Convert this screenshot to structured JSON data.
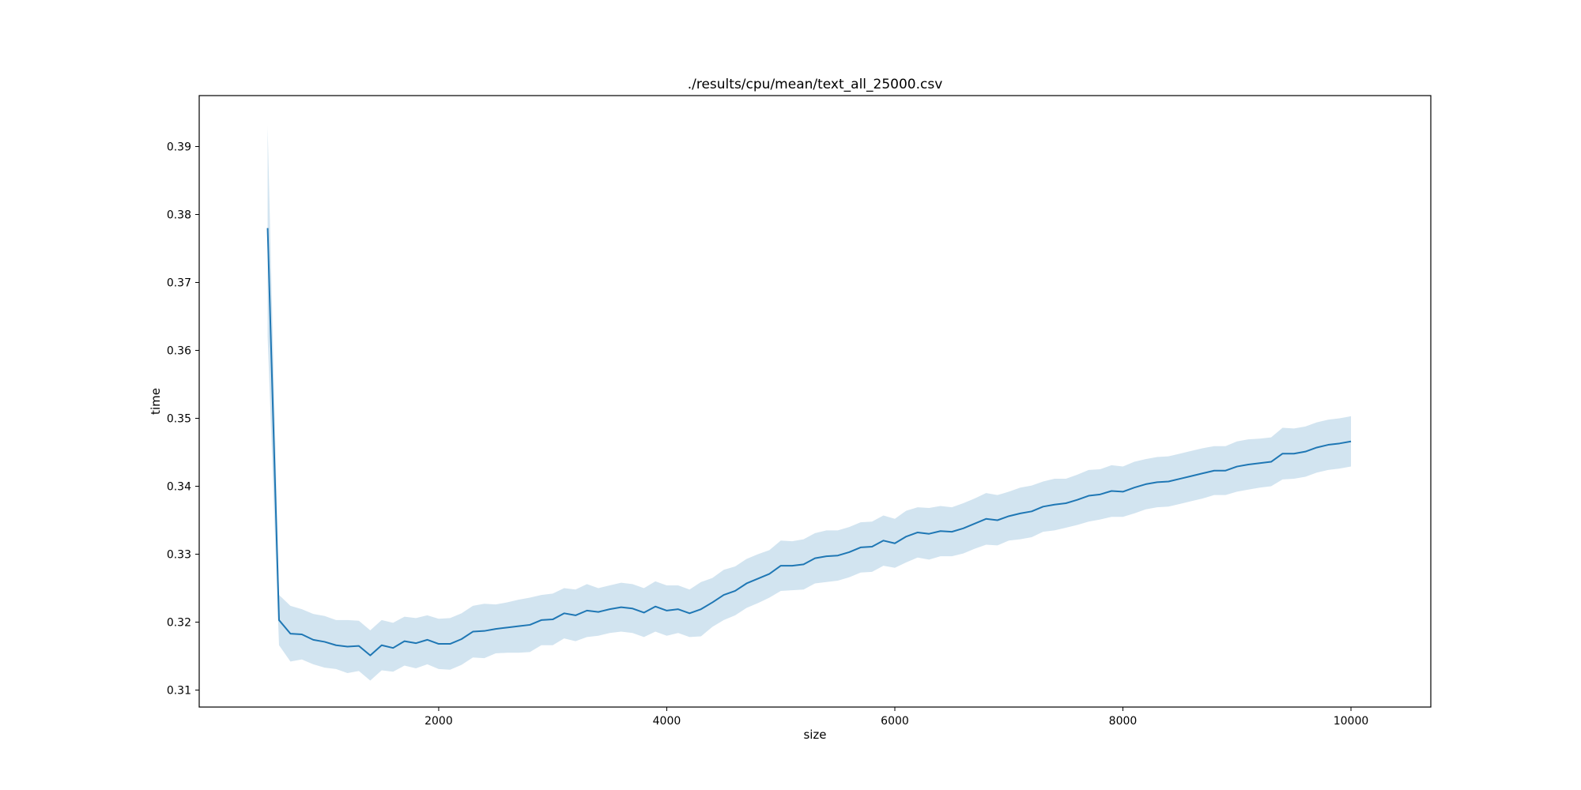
{
  "chart_data": {
    "type": "line",
    "title": "./results/cpu/mean/text_all_25000.csv",
    "xlabel": "size",
    "ylabel": "time",
    "xlim": [
      -100,
      10700
    ],
    "ylim": [
      0.3075,
      0.3975
    ],
    "xticks": [
      2000,
      4000,
      6000,
      8000,
      10000
    ],
    "xtick_labels": [
      "2000",
      "4000",
      "6000",
      "8000",
      "10000"
    ],
    "yticks": [
      0.31,
      0.32,
      0.33,
      0.34,
      0.35,
      0.36,
      0.37,
      0.38,
      0.39
    ],
    "ytick_labels": [
      "0.31",
      "0.32",
      "0.33",
      "0.34",
      "0.35",
      "0.36",
      "0.37",
      "0.38",
      "0.39"
    ],
    "grid": false,
    "series": [
      {
        "name": "time",
        "color": "#1f77b4",
        "band_color": "#1f77b4",
        "band_opacity": 0.2,
        "x": [
          500,
          600,
          700,
          800,
          900,
          1000,
          1100,
          1200,
          1300,
          1400,
          1500,
          1600,
          1700,
          1800,
          1900,
          2000,
          2100,
          2200,
          2300,
          2400,
          2500,
          2600,
          2700,
          2800,
          2900,
          3000,
          3100,
          3200,
          3300,
          3400,
          3500,
          3600,
          3700,
          3800,
          3900,
          4000,
          4100,
          4200,
          4300,
          4400,
          4500,
          4600,
          4700,
          4800,
          4900,
          5000,
          5100,
          5200,
          5300,
          5400,
          5500,
          5600,
          5700,
          5800,
          5900,
          6000,
          6100,
          6200,
          6300,
          6400,
          6500,
          6600,
          6700,
          6800,
          6900,
          7000,
          7100,
          7200,
          7300,
          7400,
          7500,
          7600,
          7700,
          7800,
          7900,
          8000,
          8100,
          8200,
          8300,
          8400,
          8500,
          8600,
          8700,
          8800,
          8900,
          9000,
          9100,
          9200,
          9300,
          9400,
          9500,
          9600,
          9700,
          9800,
          9900,
          10000
        ],
        "y": [
          0.378,
          0.3203,
          0.3183,
          0.3182,
          0.3174,
          0.3171,
          0.3166,
          0.3164,
          0.3165,
          0.3151,
          0.3166,
          0.3162,
          0.3172,
          0.3169,
          0.3174,
          0.3168,
          0.3168,
          0.3175,
          0.3186,
          0.3187,
          0.319,
          0.3192,
          0.3194,
          0.3196,
          0.3203,
          0.3204,
          0.3213,
          0.321,
          0.3217,
          0.3215,
          0.3219,
          0.3222,
          0.322,
          0.3214,
          0.3223,
          0.3217,
          0.3219,
          0.3213,
          0.3219,
          0.3229,
          0.324,
          0.3246,
          0.3257,
          0.3264,
          0.3271,
          0.3283,
          0.3283,
          0.3285,
          0.3294,
          0.3297,
          0.3298,
          0.3303,
          0.331,
          0.3311,
          0.332,
          0.3316,
          0.3326,
          0.3332,
          0.333,
          0.3334,
          0.3333,
          0.3338,
          0.3345,
          0.3352,
          0.335,
          0.3356,
          0.336,
          0.3363,
          0.337,
          0.3373,
          0.3375,
          0.338,
          0.3386,
          0.3388,
          0.3393,
          0.3392,
          0.3398,
          0.3403,
          0.3406,
          0.3407,
          0.3411,
          0.3415,
          0.3419,
          0.3423,
          0.3423,
          0.3429,
          0.3432,
          0.3434,
          0.3436,
          0.3448,
          0.3448,
          0.3451,
          0.3457,
          0.3461,
          0.3463,
          0.3466
        ],
        "lower": [
          0.362,
          0.3166,
          0.3142,
          0.3145,
          0.3138,
          0.3133,
          0.3131,
          0.3125,
          0.3128,
          0.3114,
          0.3129,
          0.3127,
          0.3136,
          0.3132,
          0.3138,
          0.3131,
          0.313,
          0.3137,
          0.3148,
          0.3147,
          0.3154,
          0.3155,
          0.3155,
          0.3156,
          0.3166,
          0.3166,
          0.3176,
          0.3172,
          0.3178,
          0.318,
          0.3184,
          0.3186,
          0.3184,
          0.3178,
          0.3186,
          0.318,
          0.3184,
          0.3178,
          0.3179,
          0.3193,
          0.3203,
          0.321,
          0.3221,
          0.3228,
          0.3236,
          0.3246,
          0.3247,
          0.3248,
          0.3257,
          0.3259,
          0.3261,
          0.3266,
          0.3273,
          0.3274,
          0.3283,
          0.328,
          0.3288,
          0.3295,
          0.3292,
          0.3297,
          0.3297,
          0.3301,
          0.3308,
          0.3314,
          0.3313,
          0.332,
          0.3322,
          0.3325,
          0.3333,
          0.3335,
          0.3339,
          0.3343,
          0.3348,
          0.3351,
          0.3355,
          0.3355,
          0.336,
          0.3366,
          0.3369,
          0.337,
          0.3374,
          0.3378,
          0.3382,
          0.3387,
          0.3387,
          0.3392,
          0.3395,
          0.3398,
          0.34,
          0.341,
          0.3411,
          0.3414,
          0.342,
          0.3424,
          0.3426,
          0.3429
        ],
        "upper": [
          0.393,
          0.324,
          0.3224,
          0.3219,
          0.3212,
          0.3209,
          0.3203,
          0.3203,
          0.3202,
          0.3188,
          0.3203,
          0.3199,
          0.3208,
          0.3206,
          0.321,
          0.3205,
          0.3206,
          0.3213,
          0.3224,
          0.3227,
          0.3226,
          0.3229,
          0.3233,
          0.3236,
          0.324,
          0.3242,
          0.325,
          0.3248,
          0.3256,
          0.325,
          0.3254,
          0.3258,
          0.3256,
          0.325,
          0.326,
          0.3254,
          0.3254,
          0.3248,
          0.3259,
          0.3265,
          0.3277,
          0.3282,
          0.3293,
          0.33,
          0.3306,
          0.332,
          0.3319,
          0.3322,
          0.3331,
          0.3335,
          0.3335,
          0.334,
          0.3347,
          0.3348,
          0.3357,
          0.3352,
          0.3364,
          0.3369,
          0.3368,
          0.3371,
          0.3369,
          0.3375,
          0.3382,
          0.339,
          0.3387,
          0.3392,
          0.3398,
          0.3401,
          0.3407,
          0.3411,
          0.3411,
          0.3417,
          0.3424,
          0.3425,
          0.3431,
          0.3429,
          0.3436,
          0.344,
          0.3443,
          0.3444,
          0.3448,
          0.3452,
          0.3456,
          0.3459,
          0.3459,
          0.3466,
          0.3469,
          0.347,
          0.3472,
          0.3486,
          0.3485,
          0.3488,
          0.3494,
          0.3498,
          0.35,
          0.3503
        ]
      }
    ]
  }
}
